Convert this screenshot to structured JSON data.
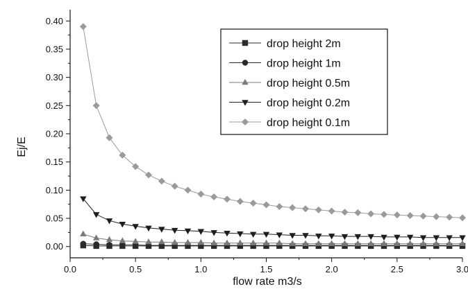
{
  "chart_data": {
    "type": "line",
    "title": "",
    "xlabel": "flow rate m3/s",
    "ylabel": "Ej/E",
    "xlim": [
      0.0,
      3.0
    ],
    "ylim": [
      -0.02,
      0.42
    ],
    "xticks": [
      "0.0",
      "0.5",
      "1.0",
      "1.5",
      "2.0",
      "2.5",
      "3.0"
    ],
    "yticks": [
      "0.00",
      "0.05",
      "0.10",
      "0.15",
      "0.20",
      "0.25",
      "0.30",
      "0.35",
      "0.40"
    ],
    "grid": false,
    "legend_position": "top-right",
    "x": [
      0.1,
      0.2,
      0.3,
      0.4,
      0.5,
      0.6,
      0.7,
      0.8,
      0.9,
      1.0,
      1.1,
      1.2,
      1.3,
      1.4,
      1.5,
      1.6,
      1.7,
      1.8,
      1.9,
      2.0,
      2.1,
      2.2,
      2.3,
      2.4,
      2.5,
      2.6,
      2.7,
      2.8,
      2.9,
      3.0
    ],
    "series": [
      {
        "name": "drop height 2m",
        "marker": "square",
        "color": "#2a2a2a",
        "values": [
          0.002,
          0.001,
          0.001,
          0.001,
          0.001,
          0.001,
          0.001,
          0.001,
          0.001,
          0.001,
          0.001,
          0.001,
          0.001,
          0.001,
          0.001,
          0.001,
          0.001,
          0.001,
          0.001,
          0.001,
          0.001,
          0.001,
          0.001,
          0.001,
          0.001,
          0.001,
          0.001,
          0.001,
          0.001,
          0.001
        ]
      },
      {
        "name": "drop height 1m",
        "marker": "circle",
        "color": "#2a2a2a",
        "values": [
          0.005,
          0.004,
          0.003,
          0.003,
          0.003,
          0.002,
          0.002,
          0.002,
          0.002,
          0.002,
          0.002,
          0.002,
          0.002,
          0.002,
          0.002,
          0.002,
          0.002,
          0.002,
          0.002,
          0.002,
          0.002,
          0.002,
          0.002,
          0.002,
          0.002,
          0.002,
          0.002,
          0.002,
          0.002,
          0.002
        ]
      },
      {
        "name": "drop height 0.5m",
        "marker": "triangle-up",
        "color": "#7a7a7a",
        "values": [
          0.022,
          0.015,
          0.012,
          0.01,
          0.009,
          0.008,
          0.008,
          0.007,
          0.007,
          0.007,
          0.006,
          0.006,
          0.006,
          0.006,
          0.006,
          0.006,
          0.005,
          0.005,
          0.005,
          0.005,
          0.005,
          0.005,
          0.005,
          0.005,
          0.005,
          0.005,
          0.005,
          0.005,
          0.005,
          0.005
        ]
      },
      {
        "name": "drop height 0.2m",
        "marker": "triangle-down",
        "color": "#1e1e1e",
        "values": [
          0.085,
          0.057,
          0.046,
          0.04,
          0.036,
          0.033,
          0.031,
          0.029,
          0.028,
          0.027,
          0.025,
          0.024,
          0.023,
          0.022,
          0.022,
          0.021,
          0.02,
          0.02,
          0.019,
          0.019,
          0.018,
          0.018,
          0.018,
          0.017,
          0.017,
          0.017,
          0.016,
          0.016,
          0.016,
          0.016
        ]
      },
      {
        "name": "drop height 0.1m",
        "marker": "diamond",
        "color": "#9a9a9a",
        "values": [
          0.39,
          0.25,
          0.193,
          0.162,
          0.142,
          0.127,
          0.116,
          0.107,
          0.1,
          0.093,
          0.088,
          0.084,
          0.08,
          0.077,
          0.074,
          0.071,
          0.069,
          0.067,
          0.065,
          0.063,
          0.061,
          0.06,
          0.058,
          0.057,
          0.056,
          0.055,
          0.054,
          0.053,
          0.052,
          0.051
        ]
      }
    ]
  }
}
